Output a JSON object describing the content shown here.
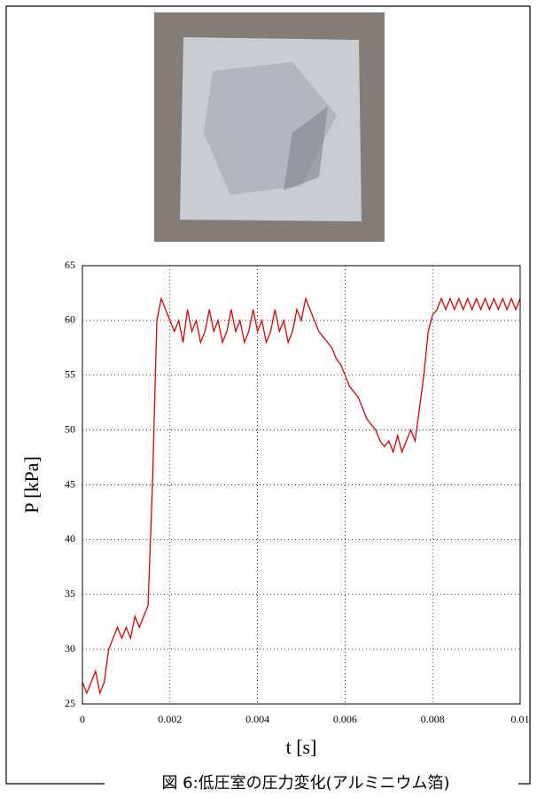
{
  "chart_data": {
    "type": "line",
    "xlabel": "t [s]",
    "ylabel": "P [kPa]",
    "x": [
      0,
      0.0001,
      0.0002,
      0.0003,
      0.0004,
      0.0005,
      0.0006,
      0.0007,
      0.0008,
      0.0009,
      0.001,
      0.0011,
      0.0012,
      0.0013,
      0.0014,
      0.0015,
      0.0016,
      0.0017,
      0.0018,
      0.0019,
      0.002,
      0.0021,
      0.0022,
      0.0023,
      0.0024,
      0.0025,
      0.0026,
      0.0027,
      0.0028,
      0.0029,
      0.003,
      0.0031,
      0.0032,
      0.0033,
      0.0034,
      0.0035,
      0.0036,
      0.0037,
      0.0038,
      0.0039,
      0.004,
      0.0041,
      0.0042,
      0.0043,
      0.0044,
      0.0045,
      0.0046,
      0.0047,
      0.0048,
      0.0049,
      0.005,
      0.0051,
      0.0052,
      0.0053,
      0.0054,
      0.0055,
      0.0056,
      0.0057,
      0.0058,
      0.0059,
      0.006,
      0.0061,
      0.0062,
      0.0063,
      0.0064,
      0.0065,
      0.0066,
      0.0067,
      0.0068,
      0.0069,
      0.007,
      0.0071,
      0.0072,
      0.0073,
      0.0074,
      0.0075,
      0.0076,
      0.0077,
      0.0078,
      0.0079,
      0.008,
      0.0081,
      0.0082,
      0.0083,
      0.0084,
      0.0085,
      0.0086,
      0.0087,
      0.0088,
      0.0089,
      0.009,
      0.0091,
      0.0092,
      0.0093,
      0.0094,
      0.0095,
      0.0096,
      0.0097,
      0.0098,
      0.0099,
      0.01
    ],
    "series": [
      {
        "color": "#e00000",
        "values": [
          27,
          26,
          27,
          28,
          26,
          27,
          30,
          31,
          32,
          31,
          32,
          31,
          33,
          32,
          33,
          34,
          45,
          60,
          62,
          61,
          60,
          59,
          60,
          58,
          61,
          59,
          60,
          58,
          59,
          61,
          59,
          60,
          58,
          59,
          61,
          59,
          60,
          58,
          59,
          61,
          59,
          60,
          58,
          59,
          61,
          59,
          60,
          58,
          59,
          61,
          60,
          62,
          61,
          60,
          59,
          58.5,
          58,
          57.5,
          56.5,
          56,
          55,
          54,
          53.5,
          53,
          52,
          51,
          50.5,
          50,
          49,
          48.5,
          49,
          48,
          49.5,
          48,
          49,
          50,
          49,
          52,
          55,
          59,
          60.5,
          61,
          62,
          61,
          62,
          61,
          62,
          61,
          62,
          61,
          62,
          61,
          62,
          61,
          62,
          61,
          62,
          61,
          62,
          61,
          62
        ]
      }
    ],
    "xlim": [
      0,
      0.01
    ],
    "xticks": [
      0,
      0.002,
      0.004,
      0.006,
      0.008,
      0.01
    ],
    "ylim": [
      25,
      65
    ],
    "yticks": [
      25,
      30,
      35,
      40,
      45,
      50,
      55,
      60,
      65
    ],
    "grid": true
  },
  "caption": "図 6:低圧室の圧力変化(アルミニウム箔)"
}
